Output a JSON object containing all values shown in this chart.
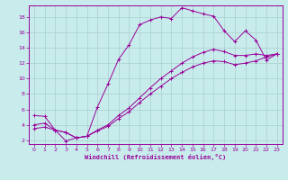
{
  "xlabel": "Windchill (Refroidissement éolien,°C)",
  "bg_color": "#c8ecec",
  "grid_color": "#aed4d4",
  "line_color": "#990099",
  "xlim": [
    -0.5,
    23.5
  ],
  "ylim": [
    1.5,
    19.5
  ],
  "xticks": [
    0,
    1,
    2,
    3,
    4,
    5,
    6,
    7,
    8,
    9,
    10,
    11,
    12,
    13,
    14,
    15,
    16,
    17,
    18,
    19,
    20,
    21,
    22,
    23
  ],
  "yticks": [
    2,
    4,
    6,
    8,
    10,
    12,
    14,
    16,
    18
  ],
  "curve1_x": [
    0,
    1,
    2,
    3,
    4,
    5,
    6,
    7,
    8,
    9,
    10,
    11,
    12,
    13,
    14,
    15,
    16,
    17,
    18,
    19,
    20,
    21,
    22,
    23
  ],
  "curve1_y": [
    5.2,
    5.1,
    3.3,
    1.9,
    2.3,
    2.5,
    6.3,
    9.3,
    12.5,
    14.4,
    17.0,
    17.6,
    18.0,
    17.8,
    19.2,
    18.8,
    18.4,
    18.1,
    16.2,
    14.8,
    16.2,
    15.0,
    12.4,
    13.2
  ],
  "curve2_x": [
    0,
    1,
    2,
    3,
    4,
    5,
    6,
    7,
    8,
    9,
    10,
    11,
    12,
    13,
    14,
    15,
    16,
    17,
    18,
    19,
    20,
    21,
    22,
    23
  ],
  "curve2_y": [
    4.0,
    4.2,
    3.3,
    3.0,
    2.3,
    2.5,
    3.3,
    4.0,
    5.2,
    6.2,
    7.5,
    8.8,
    10.0,
    11.0,
    12.0,
    12.8,
    13.4,
    13.8,
    13.5,
    13.0,
    13.0,
    13.2,
    13.0,
    13.2
  ],
  "curve3_x": [
    0,
    1,
    2,
    3,
    4,
    5,
    6,
    7,
    8,
    9,
    10,
    11,
    12,
    13,
    14,
    15,
    16,
    17,
    18,
    19,
    20,
    21,
    22,
    23
  ],
  "curve3_y": [
    3.5,
    3.7,
    3.3,
    3.0,
    2.3,
    2.5,
    3.2,
    3.8,
    4.8,
    5.7,
    6.9,
    8.0,
    9.0,
    10.0,
    10.8,
    11.5,
    12.0,
    12.3,
    12.2,
    11.8,
    12.0,
    12.3,
    12.8,
    13.2
  ]
}
